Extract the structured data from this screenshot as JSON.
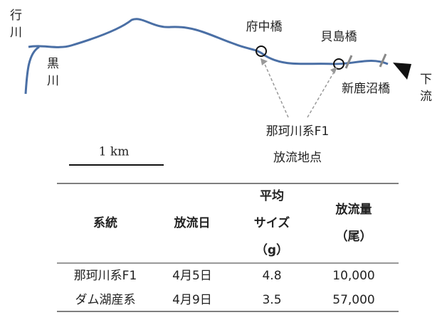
{
  "map": {
    "river_labels": [
      {
        "lines": [
          "行",
          "川"
        ]
      },
      {
        "lines": [
          "黒",
          "川"
        ]
      },
      {
        "lines": [
          "下",
          "流"
        ]
      }
    ],
    "bridges": [
      "府中橋",
      "貝島橋",
      "新鹿沼橋"
    ],
    "release_point": [
      "那珂川系F1",
      "放流地点"
    ],
    "scale": "1 km"
  },
  "table": {
    "header": [
      [
        "系統"
      ],
      [
        "放流日"
      ],
      [
        "平均",
        "サイズ",
        "（g）"
      ],
      [
        "放流量",
        "（尾）"
      ]
    ],
    "rows": [
      [
        "那珂川系F1",
        "4月5日",
        "4.8",
        "10,000"
      ],
      [
        "ダム湖産系",
        "4月9日",
        "3.5",
        "57,000"
      ]
    ]
  }
}
